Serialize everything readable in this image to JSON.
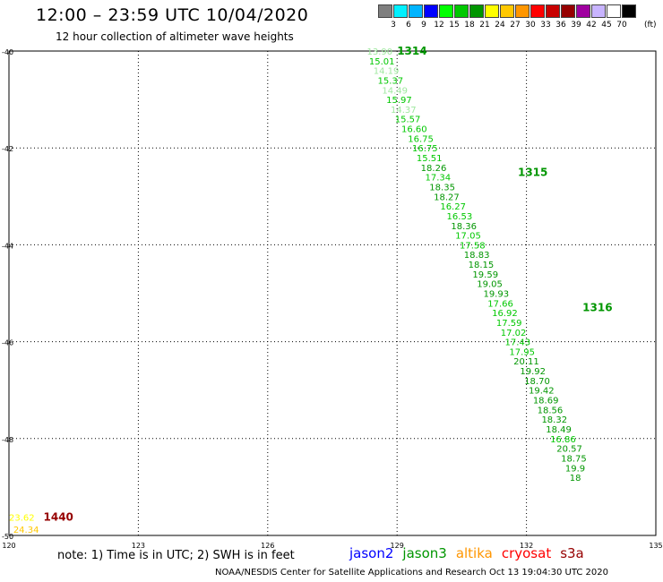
{
  "title": "12:00 – 23:59 UTC 10/04/2020",
  "subtitle": "12 hour collection of altimeter wave heights",
  "legend": {
    "labels": [
      "3",
      "6",
      "9",
      "12",
      "15",
      "18",
      "21",
      "24",
      "27",
      "30",
      "33",
      "36",
      "39",
      "42",
      "45",
      "70"
    ],
    "colors": [
      "#7f7f7f",
      "#00f0ff",
      "#00b4ff",
      "#0000ff",
      "#00ff00",
      "#00c800",
      "#009600",
      "#ffff00",
      "#ffc800",
      "#ff9600",
      "#ff0000",
      "#c80000",
      "#960000",
      "#a000a0",
      "#c8b4ff",
      "#ffffff",
      "#000000"
    ],
    "unit": "(ft)"
  },
  "axes": {
    "lat_labels": [
      "-40",
      "-42",
      "-44",
      "-46",
      "-48",
      "-50"
    ],
    "lon_labels": [
      "120",
      "123",
      "126",
      "129",
      "132",
      "135"
    ],
    "lat_range": [
      -50,
      -40
    ],
    "lon_range": [
      120,
      135
    ]
  },
  "chart_data": {
    "type": "map-track",
    "track_times": [
      {
        "label": "1314",
        "color": "#009600",
        "lon": 129.0,
        "lat": -40.0
      },
      {
        "label": "1315",
        "color": "#009600",
        "lon": 131.8,
        "lat": -42.5
      },
      {
        "label": "1316",
        "color": "#009600",
        "lon": 133.3,
        "lat": -45.3
      },
      {
        "label": "1440",
        "color": "#960000",
        "lon": 120.8,
        "lat": -49.62
      }
    ],
    "observations": [
      {
        "v": "13.90",
        "c": "#9fe89f",
        "lon": 128.3,
        "lat": -40.0
      },
      {
        "v": "15.01",
        "c": "#00c800",
        "lon": 128.35,
        "lat": -40.2
      },
      {
        "v": "14.19",
        "c": "#9fe89f",
        "lon": 128.45,
        "lat": -40.4
      },
      {
        "v": "15.37",
        "c": "#00c800",
        "lon": 128.55,
        "lat": -40.6
      },
      {
        "v": "14.49",
        "c": "#9fe89f",
        "lon": 128.65,
        "lat": -40.8
      },
      {
        "v": "15.97",
        "c": "#00c800",
        "lon": 128.75,
        "lat": -41.0
      },
      {
        "v": "14.37",
        "c": "#9fe89f",
        "lon": 128.85,
        "lat": -41.2
      },
      {
        "v": "15.57",
        "c": "#00c800",
        "lon": 128.95,
        "lat": -41.4
      },
      {
        "v": "16.60",
        "c": "#00c800",
        "lon": 129.1,
        "lat": -41.6
      },
      {
        "v": "16.75",
        "c": "#00c800",
        "lon": 129.25,
        "lat": -41.8
      },
      {
        "v": "16.75",
        "c": "#00c800",
        "lon": 129.35,
        "lat": -42.0
      },
      {
        "v": "15.51",
        "c": "#00c800",
        "lon": 129.45,
        "lat": -42.2
      },
      {
        "v": "18.26",
        "c": "#009600",
        "lon": 129.55,
        "lat": -42.4
      },
      {
        "v": "17.34",
        "c": "#00c800",
        "lon": 129.65,
        "lat": -42.6
      },
      {
        "v": "18.35",
        "c": "#009600",
        "lon": 129.75,
        "lat": -42.8
      },
      {
        "v": "18.27",
        "c": "#009600",
        "lon": 129.85,
        "lat": -43.0
      },
      {
        "v": "16.27",
        "c": "#00c800",
        "lon": 130.0,
        "lat": -43.2
      },
      {
        "v": "16.53",
        "c": "#00c800",
        "lon": 130.15,
        "lat": -43.4
      },
      {
        "v": "18.36",
        "c": "#009600",
        "lon": 130.25,
        "lat": -43.6
      },
      {
        "v": "17.05",
        "c": "#00c800",
        "lon": 130.35,
        "lat": -43.8
      },
      {
        "v": "17.58",
        "c": "#00c800",
        "lon": 130.45,
        "lat": -44.0
      },
      {
        "v": "18.83",
        "c": "#009600",
        "lon": 130.55,
        "lat": -44.2
      },
      {
        "v": "18.15",
        "c": "#009600",
        "lon": 130.65,
        "lat": -44.4
      },
      {
        "v": "19.59",
        "c": "#009600",
        "lon": 130.75,
        "lat": -44.6
      },
      {
        "v": "19.05",
        "c": "#009600",
        "lon": 130.85,
        "lat": -44.8
      },
      {
        "v": "19.93",
        "c": "#009600",
        "lon": 131.0,
        "lat": -45.0
      },
      {
        "v": "17.66",
        "c": "#00c800",
        "lon": 131.1,
        "lat": -45.2
      },
      {
        "v": "16.92",
        "c": "#00c800",
        "lon": 131.2,
        "lat": -45.4
      },
      {
        "v": "17.59",
        "c": "#00c800",
        "lon": 131.3,
        "lat": -45.6
      },
      {
        "v": "17.02",
        "c": "#00c800",
        "lon": 131.4,
        "lat": -45.8
      },
      {
        "v": "17.43",
        "c": "#00c800",
        "lon": 131.5,
        "lat": -46.0
      },
      {
        "v": "17.95",
        "c": "#00c800",
        "lon": 131.6,
        "lat": -46.2
      },
      {
        "v": "20.11",
        "c": "#009600",
        "lon": 131.7,
        "lat": -46.4
      },
      {
        "v": "19.92",
        "c": "#009600",
        "lon": 131.85,
        "lat": -46.6
      },
      {
        "v": "18.70",
        "c": "#009600",
        "lon": 131.95,
        "lat": -46.8
      },
      {
        "v": "19.42",
        "c": "#009600",
        "lon": 132.05,
        "lat": -47.0
      },
      {
        "v": "18.69",
        "c": "#009600",
        "lon": 132.15,
        "lat": -47.2
      },
      {
        "v": "18.56",
        "c": "#009600",
        "lon": 132.25,
        "lat": -47.4
      },
      {
        "v": "18.32",
        "c": "#009600",
        "lon": 132.35,
        "lat": -47.6
      },
      {
        "v": "18.49",
        "c": "#009600",
        "lon": 132.45,
        "lat": -47.8
      },
      {
        "v": "16.86",
        "c": "#00c800",
        "lon": 132.55,
        "lat": -48.0
      },
      {
        "v": "20.57",
        "c": "#009600",
        "lon": 132.7,
        "lat": -48.2
      },
      {
        "v": "18.75",
        "c": "#009600",
        "lon": 132.8,
        "lat": -48.4
      },
      {
        "v": "19.9",
        "c": "#009600",
        "lon": 132.9,
        "lat": -48.6
      },
      {
        "v": "18",
        "c": "#009600",
        "lon": 133.0,
        "lat": -48.8
      },
      {
        "v": "23.62",
        "c": "#ffff00",
        "lon": 120.0,
        "lat": -49.62
      },
      {
        "v": "24.34",
        "c": "#ffc800",
        "lon": 120.1,
        "lat": -49.87
      }
    ]
  },
  "note": "note: 1) Time is in UTC; 2) SWH is in feet",
  "satellites": [
    {
      "name": "jason2",
      "color": "#0000ff"
    },
    {
      "name": "jason3",
      "color": "#009600"
    },
    {
      "name": "altika",
      "color": "#ff9600"
    },
    {
      "name": "cryosat",
      "color": "#ff0000"
    },
    {
      "name": "s3a",
      "color": "#960000"
    }
  ],
  "credit": "NOAA/NESDIS Center for Satellite Applications and Research    Oct 13 19:04:30 UTC 2020"
}
